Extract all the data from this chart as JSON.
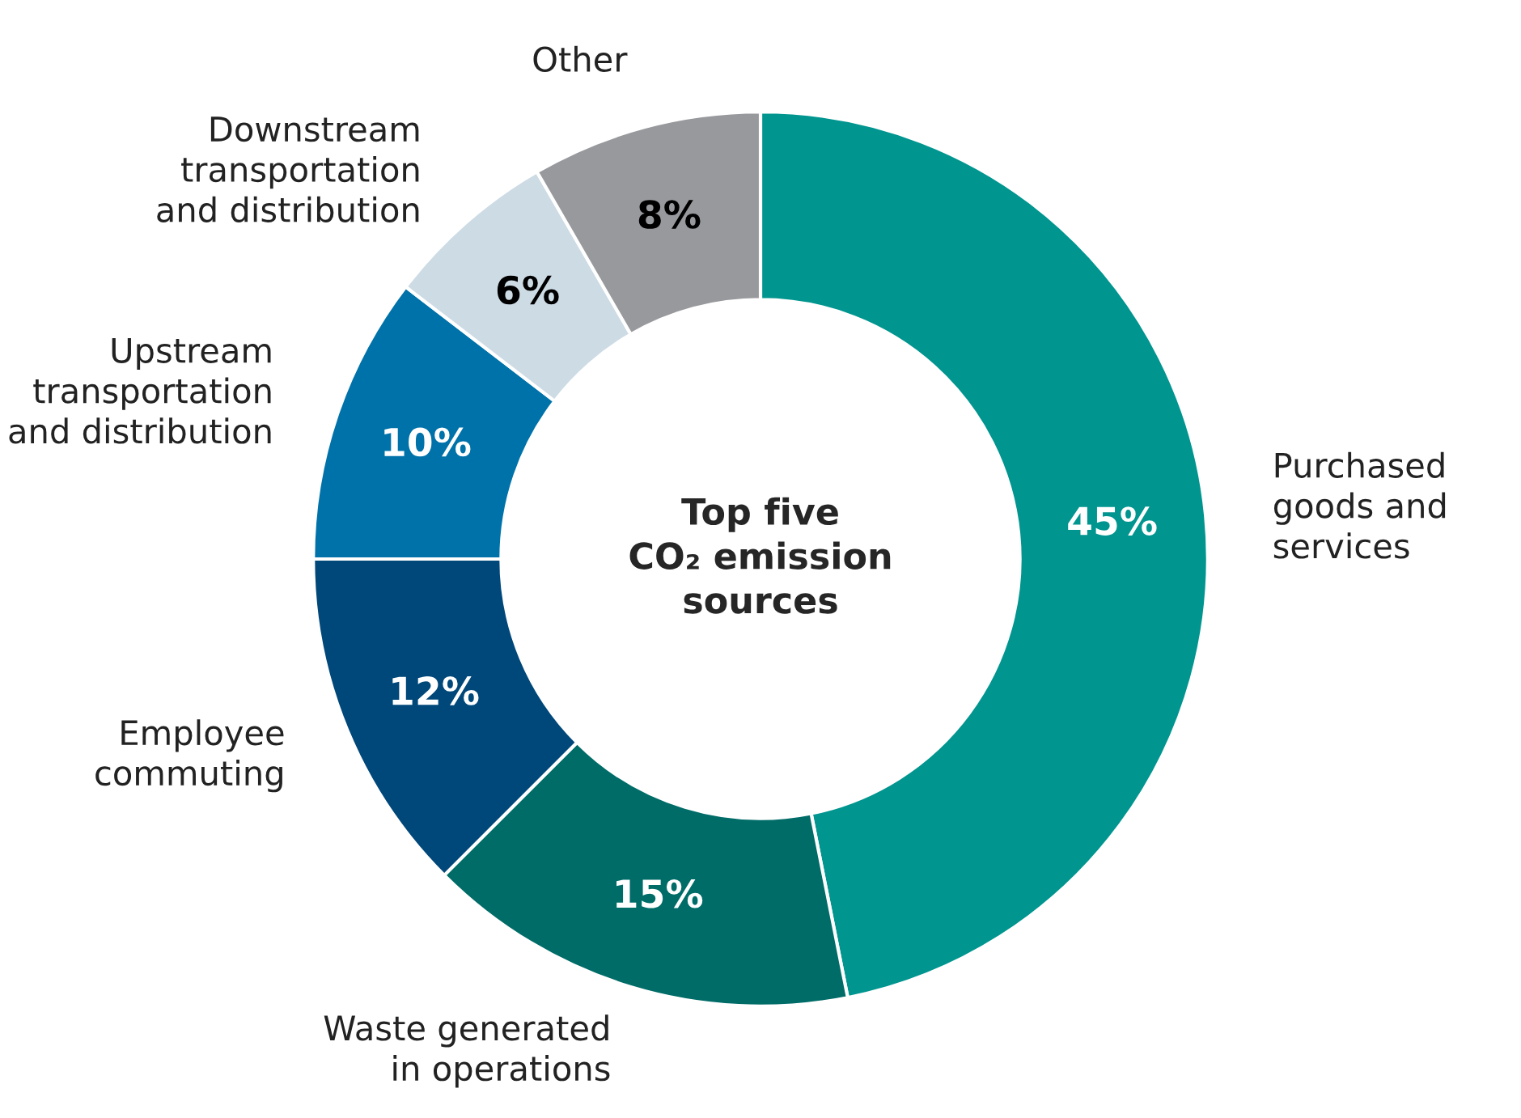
{
  "chart_data": {
    "type": "donut",
    "title": "Top five\nCO₂ emission\nsources",
    "categories": [
      "Purchased\ngoods and\nservices",
      "Waste generated\nin operations",
      "Employee\ncommuting",
      "Upstream\ntransportation\nand distribution",
      "Downstream\ntransportation\nand distribution",
      "Other"
    ],
    "values": [
      45,
      15,
      12,
      10,
      6,
      8
    ],
    "value_labels": [
      "45%",
      "15%",
      "12%",
      "10%",
      "6%",
      "8%"
    ],
    "colors": [
      "#00958f",
      "#006c68",
      "#00477a",
      "#0072aa",
      "#cddbe5",
      "#98999d"
    ],
    "legend": false
  }
}
